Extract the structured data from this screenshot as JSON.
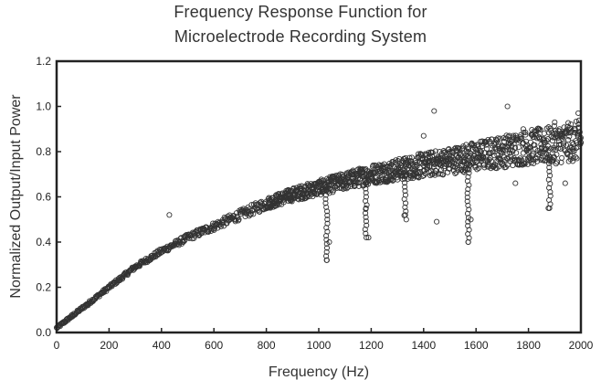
{
  "chart_data": {
    "type": "scatter",
    "title_line1": "Frequency Response Function for",
    "title_line2": "Microelectrode Recording System",
    "xlabel": "Frequency (Hz)",
    "ylabel": "Normalized Output/Input Power",
    "xlim": [
      0,
      2000
    ],
    "ylim": [
      0,
      1.2
    ],
    "xticks": [
      0,
      200,
      400,
      600,
      800,
      1000,
      1200,
      1400,
      1600,
      1800,
      2000
    ],
    "yticks": [
      "0.0",
      "0.2",
      "0.4",
      "0.6",
      "0.8",
      "1.0",
      "1.2"
    ],
    "grid": false,
    "marker": "open-circle",
    "trend": [
      [
        0,
        0.02
      ],
      [
        100,
        0.11
      ],
      [
        200,
        0.2
      ],
      [
        300,
        0.29
      ],
      [
        400,
        0.36
      ],
      [
        500,
        0.42
      ],
      [
        600,
        0.47
      ],
      [
        700,
        0.52
      ],
      [
        800,
        0.57
      ],
      [
        900,
        0.61
      ],
      [
        1000,
        0.64
      ],
      [
        1100,
        0.67
      ],
      [
        1200,
        0.7
      ],
      [
        1300,
        0.72
      ],
      [
        1400,
        0.74
      ],
      [
        1500,
        0.76
      ],
      [
        1600,
        0.78
      ],
      [
        1700,
        0.8
      ],
      [
        1800,
        0.82
      ],
      [
        1900,
        0.83
      ],
      [
        2000,
        0.85
      ]
    ],
    "points": [
      [
        20,
        0.04
      ],
      [
        60,
        0.07
      ],
      [
        120,
        0.12
      ],
      [
        180,
        0.18
      ],
      [
        240,
        0.23
      ],
      [
        300,
        0.29
      ],
      [
        360,
        0.33
      ],
      [
        420,
        0.37
      ],
      [
        430,
        0.52
      ],
      [
        480,
        0.4
      ],
      [
        540,
        0.44
      ],
      [
        600,
        0.47
      ],
      [
        660,
        0.5
      ],
      [
        720,
        0.53
      ],
      [
        780,
        0.56
      ],
      [
        840,
        0.58
      ],
      [
        900,
        0.61
      ],
      [
        960,
        0.63
      ],
      [
        1020,
        0.65
      ],
      [
        1030,
        0.32
      ],
      [
        1040,
        0.4
      ],
      [
        1080,
        0.67
      ],
      [
        1140,
        0.68
      ],
      [
        1180,
        0.55
      ],
      [
        1190,
        0.42
      ],
      [
        1250,
        0.7
      ],
      [
        1320,
        0.72
      ],
      [
        1330,
        0.52
      ],
      [
        1380,
        0.79
      ],
      [
        1400,
        0.87
      ],
      [
        1420,
        0.76
      ],
      [
        1440,
        0.98
      ],
      [
        1450,
        0.49
      ],
      [
        1500,
        0.8
      ],
      [
        1560,
        0.77
      ],
      [
        1570,
        0.4
      ],
      [
        1580,
        0.5
      ],
      [
        1620,
        0.8
      ],
      [
        1680,
        0.85
      ],
      [
        1720,
        1.0
      ],
      [
        1750,
        0.66
      ],
      [
        1780,
        0.9
      ],
      [
        1820,
        0.83
      ],
      [
        1860,
        0.88
      ],
      [
        1880,
        0.55
      ],
      [
        1900,
        0.93
      ],
      [
        1940,
        0.66
      ],
      [
        1960,
        0.78
      ],
      [
        1990,
        0.97
      ],
      [
        2000,
        0.84
      ]
    ],
    "dropouts": [
      {
        "x": 1030,
        "from": 0.65,
        "to": 0.32
      },
      {
        "x": 1180,
        "from": 0.68,
        "to": 0.42
      },
      {
        "x": 1330,
        "from": 0.72,
        "to": 0.5
      },
      {
        "x": 1570,
        "from": 0.76,
        "to": 0.4
      },
      {
        "x": 1880,
        "from": 0.8,
        "to": 0.55
      }
    ],
    "colors": {
      "marker": "#333333",
      "axis": "#222222",
      "text": "#333333"
    }
  }
}
